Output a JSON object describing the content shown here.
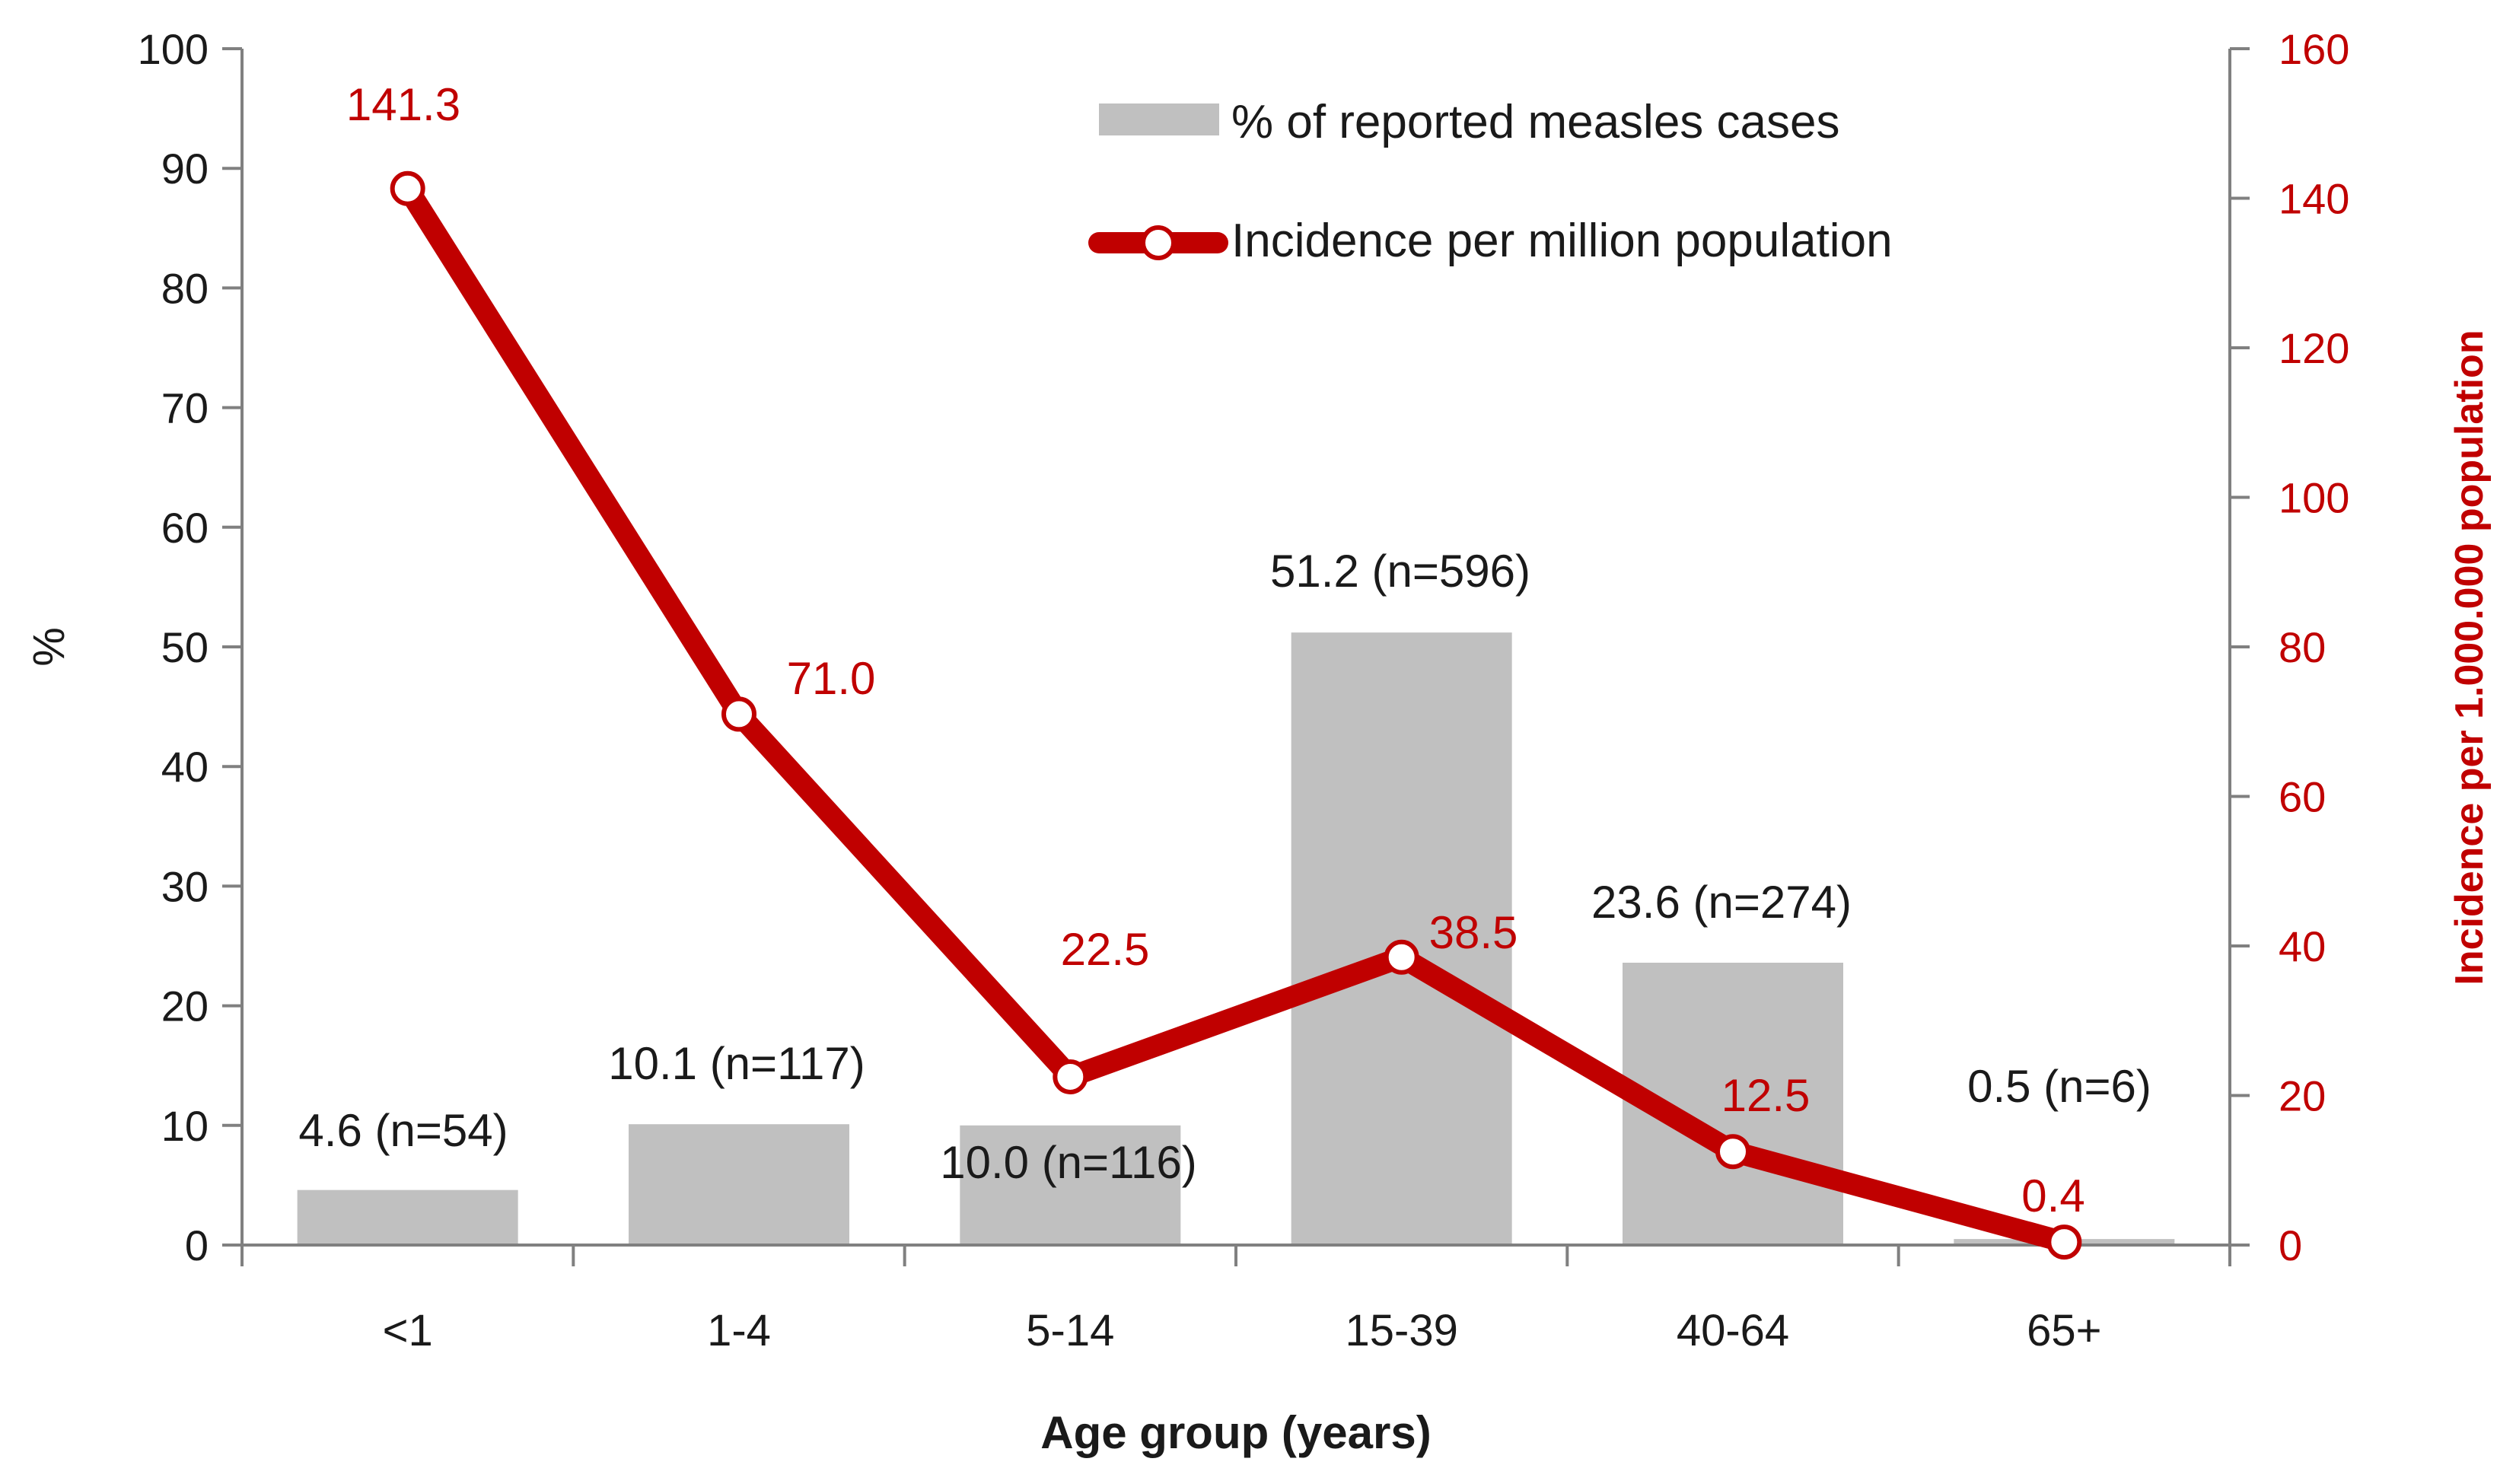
{
  "chart_data": {
    "type": "bar",
    "title": "",
    "categories": [
      "<1",
      "1-4",
      "5-14",
      "15-39",
      "40-64",
      "65+"
    ],
    "xlabel": "Age group (years)",
    "ylabel": "%",
    "y2label": "Incidence per 1.000.000 population",
    "ylim": [
      0,
      100
    ],
    "yticks": [
      "0",
      "10",
      "20",
      "30",
      "40",
      "50",
      "60",
      "70",
      "80",
      "90",
      "100"
    ],
    "y2lim": [
      0,
      160
    ],
    "y2ticks": [
      "0",
      "20",
      "40",
      "60",
      "80",
      "100",
      "120",
      "140",
      "160"
    ],
    "grid": false,
    "legend_position": "top-right",
    "series": [
      {
        "name": "% of reported measles cases",
        "type": "bar",
        "axis": "left",
        "color": "#c0c0c0",
        "values": [
          4.6,
          10.1,
          10.0,
          51.2,
          23.6,
          0.5
        ],
        "labels": [
          "4.6 (n=54)",
          "10.1 (n=117)",
          "10.0 (n=116)",
          "51.2 (n=596)",
          "23.6  (n=274)",
          "0.5 (n=6)"
        ]
      },
      {
        "name": "Incidence per million population",
        "type": "line",
        "axis": "right",
        "color": "#c00000",
        "values": [
          141.3,
          71.0,
          22.5,
          38.5,
          12.5,
          0.4
        ],
        "labels": [
          "141.3",
          "71.0",
          "22.5",
          "38.5",
          "12.5",
          "0.4"
        ]
      }
    ],
    "colors": {
      "axis": "#808080",
      "text": "#1a1a1a",
      "accent": "#c00000"
    }
  }
}
